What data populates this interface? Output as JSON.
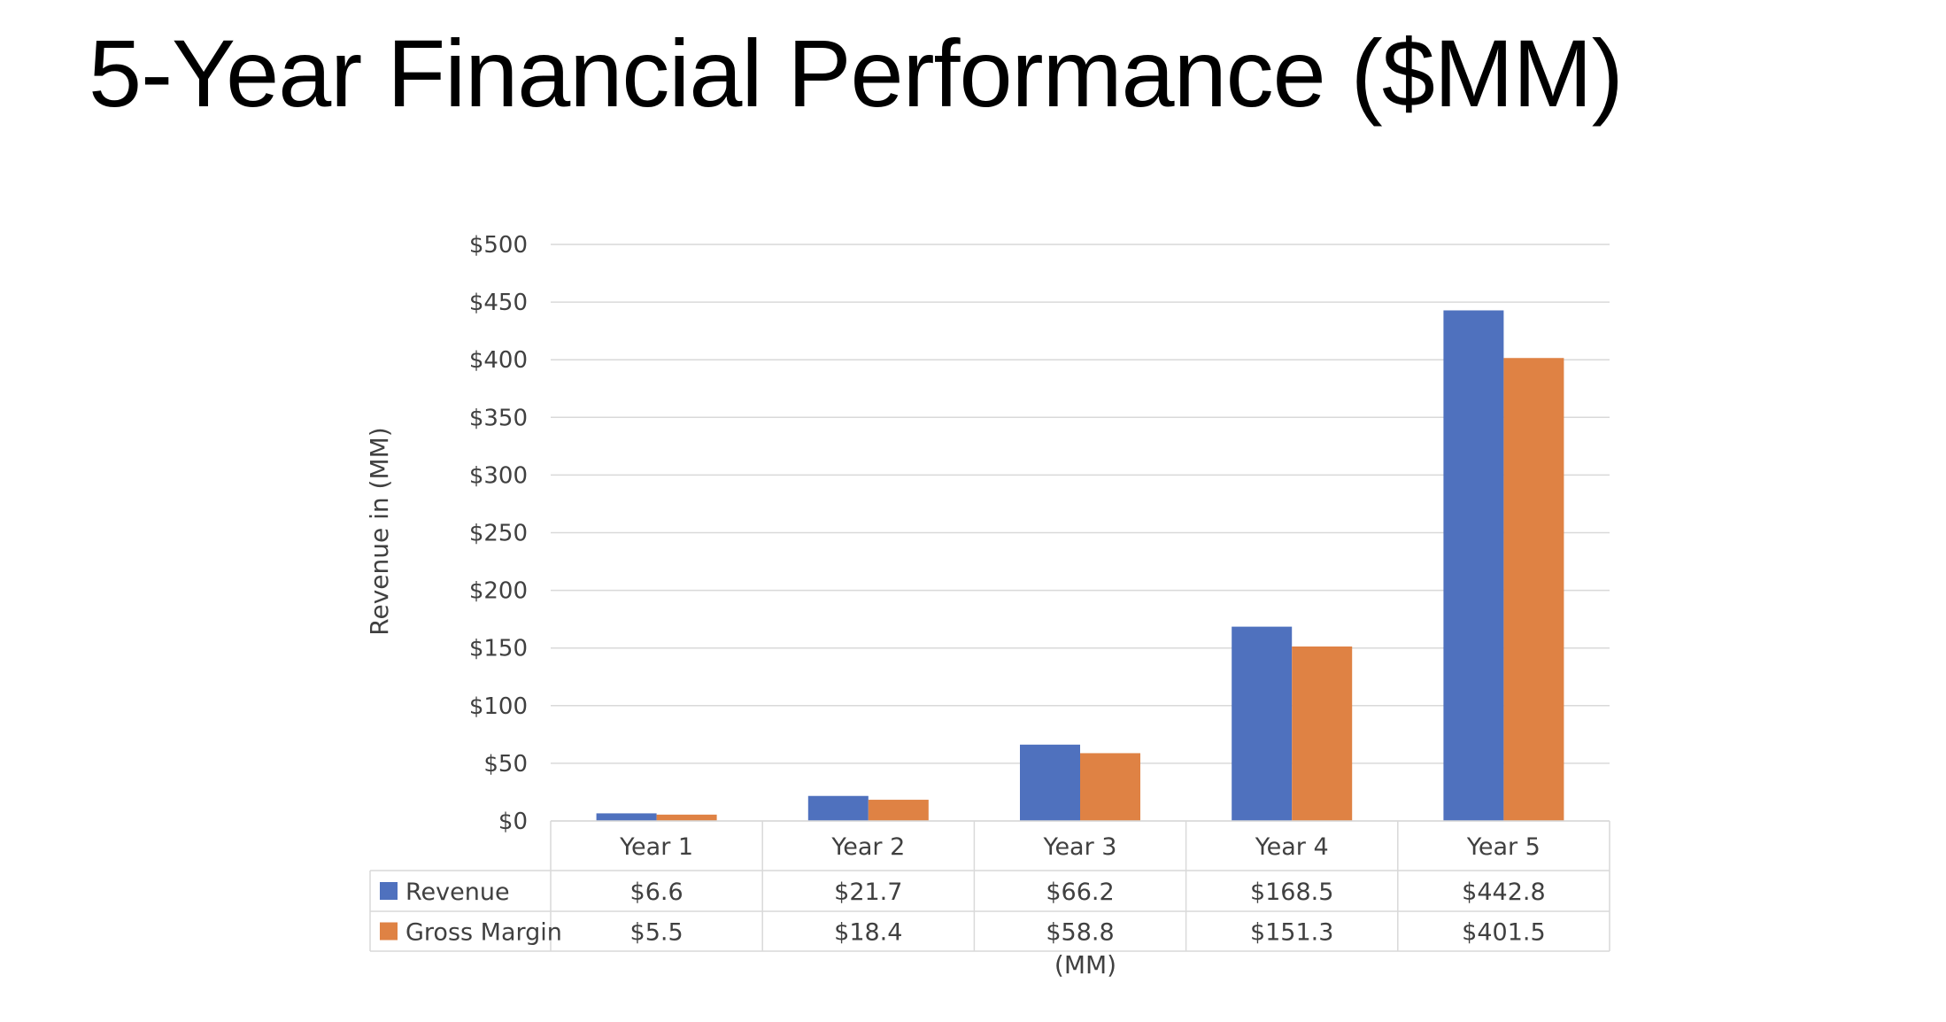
{
  "slide": {
    "title": "5-Year Financial Performance ($MM)"
  },
  "chart_data": {
    "type": "bar",
    "title": "",
    "categories": [
      "Year 1",
      "Year 2",
      "Year 3",
      "Year 4",
      "Year 5"
    ],
    "series": [
      {
        "name": "Revenue",
        "values": [
          6.6,
          21.7,
          66.2,
          168.5,
          442.8
        ],
        "labels": [
          "$6.6",
          "$21.7",
          "$66.2",
          "$168.5",
          "$442.8"
        ],
        "color": "#4f71be"
      },
      {
        "name": "Gross Margin",
        "values": [
          5.5,
          18.4,
          58.8,
          151.3,
          401.5
        ],
        "labels": [
          "$5.5",
          "$18.4",
          "$58.8",
          "$151.3",
          "$401.5"
        ],
        "color": "#df8244"
      }
    ],
    "ylim": [
      0,
      500
    ],
    "yticks": [
      0,
      50,
      100,
      150,
      200,
      250,
      300,
      350,
      400,
      450,
      500
    ],
    "ytick_labels": [
      "$0",
      "$50",
      "$100",
      "$150",
      "$200",
      "$250",
      "$300",
      "$350",
      "$400",
      "$450",
      "$500"
    ],
    "ylabel": "Revenue in (MM)",
    "xlabel": "(MM)",
    "grid": true,
    "legend": "data-table",
    "gridline_color": "#d9d9d9",
    "table_border_color": "#d9d9d9"
  }
}
